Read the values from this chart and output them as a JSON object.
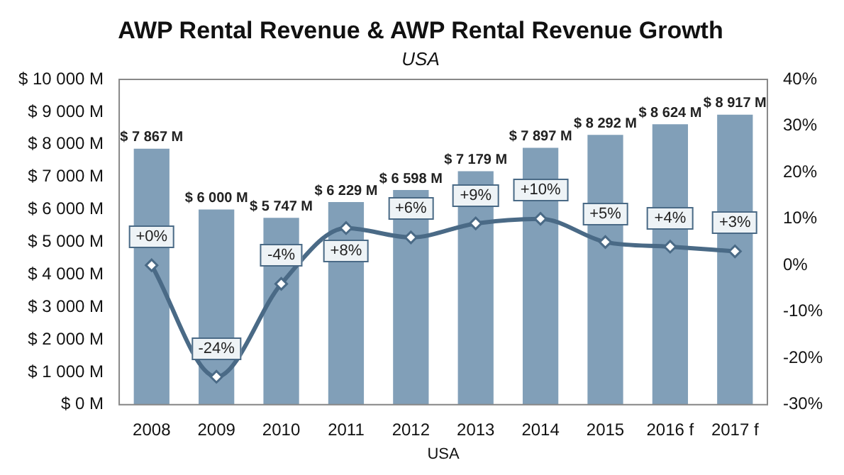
{
  "chart_data": {
    "type": "bar",
    "title": "AWP Rental Revenue & AWP Rental Revenue Growth",
    "subtitle": "USA",
    "xlabel": "USA",
    "categories": [
      "2008",
      "2009",
      "2010",
      "2011",
      "2012",
      "2013",
      "2014",
      "2015",
      "2016 f",
      "2017 f"
    ],
    "series": [
      {
        "color": "#819fb8",
        "values": [
          7867,
          6000,
          5747,
          6229,
          6598,
          7179,
          7897,
          8292,
          8624,
          8917
        ],
        "value_labels": [
          "$ 7 867 M",
          "$ 6 000 M",
          "$ 5 747 M",
          "$ 6 229 M",
          "$ 6 598 M",
          "$ 7 179 M",
          "$ 7 897 M",
          "$ 8 292 M",
          "$ 8 624 M",
          "$ 8 917 M"
        ]
      },
      {
        "type": "line",
        "axis": "y2",
        "color": "#4a6a86",
        "marker": "diamond",
        "values": [
          0,
          -24,
          -4,
          8,
          6,
          9,
          10,
          5,
          4,
          3
        ],
        "value_labels": [
          "+0%",
          "-24%",
          "-4%",
          "+8%",
          "+6%",
          "+9%",
          "+10%",
          "+5%",
          "+4%",
          "+3%"
        ]
      }
    ],
    "ylim": [
      0,
      10000
    ],
    "yticks": [
      {
        "value": 0,
        "label": "$ 0 M"
      },
      {
        "value": 1000,
        "label": "$ 1 000 M"
      },
      {
        "value": 2000,
        "label": "$ 2 000 M"
      },
      {
        "value": 3000,
        "label": "$ 3 000 M"
      },
      {
        "value": 4000,
        "label": "$ 4 000 M"
      },
      {
        "value": 5000,
        "label": "$ 5 000 M"
      },
      {
        "value": 6000,
        "label": "$ 6 000 M"
      },
      {
        "value": 7000,
        "label": "$ 7 000 M"
      },
      {
        "value": 8000,
        "label": "$ 8 000 M"
      },
      {
        "value": 9000,
        "label": "$ 9 000 M"
      },
      {
        "value": 10000,
        "label": "$ 10 000 M"
      }
    ],
    "y2lim": [
      -30,
      40
    ],
    "y2ticks": [
      {
        "value": -30,
        "label": "-30%"
      },
      {
        "value": -20,
        "label": "-20%"
      },
      {
        "value": -10,
        "label": "-10%"
      },
      {
        "value": 0,
        "label": "0%"
      },
      {
        "value": 10,
        "label": "10%"
      },
      {
        "value": 20,
        "label": "20%"
      },
      {
        "value": 30,
        "label": "30%"
      },
      {
        "value": 40,
        "label": "40%"
      }
    ],
    "grid": false,
    "legend": false
  }
}
